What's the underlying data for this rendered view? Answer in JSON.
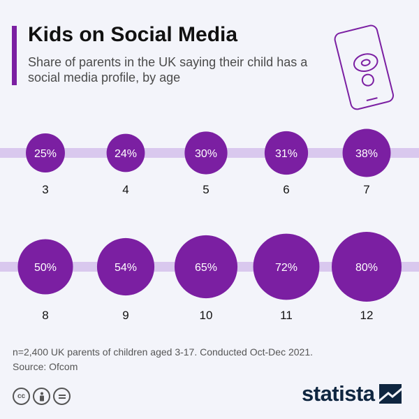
{
  "header": {
    "title": "Kids on Social Media",
    "subtitle": "Share of parents in the UK saying their child has a social media profile, by age"
  },
  "chart_data": {
    "type": "bubble",
    "title": "Kids on Social Media",
    "subtitle": "Share of parents in the UK saying their child has a social media profile, by age",
    "unit": "%",
    "categories": [
      "3",
      "4",
      "5",
      "6",
      "7",
      "8",
      "9",
      "10",
      "11",
      "12"
    ],
    "values": [
      25,
      24,
      30,
      31,
      38,
      50,
      54,
      65,
      72,
      80
    ],
    "labels": [
      "25%",
      "24%",
      "30%",
      "31%",
      "38%",
      "50%",
      "54%",
      "65%",
      "72%",
      "80%"
    ]
  },
  "footer": {
    "note": "n=2,400 UK parents of children aged 3-17. Conducted Oct-Dec 2021.",
    "source": "Source: Ofcom",
    "logo_text": "statista",
    "license_icons": [
      "cc-icon",
      "by-icon",
      "nd-icon"
    ]
  },
  "colors": {
    "bubble": "#7b1fa2",
    "band": "#d9c8ee",
    "accent": "#7b1fa2",
    "logo": "#0f2640"
  }
}
